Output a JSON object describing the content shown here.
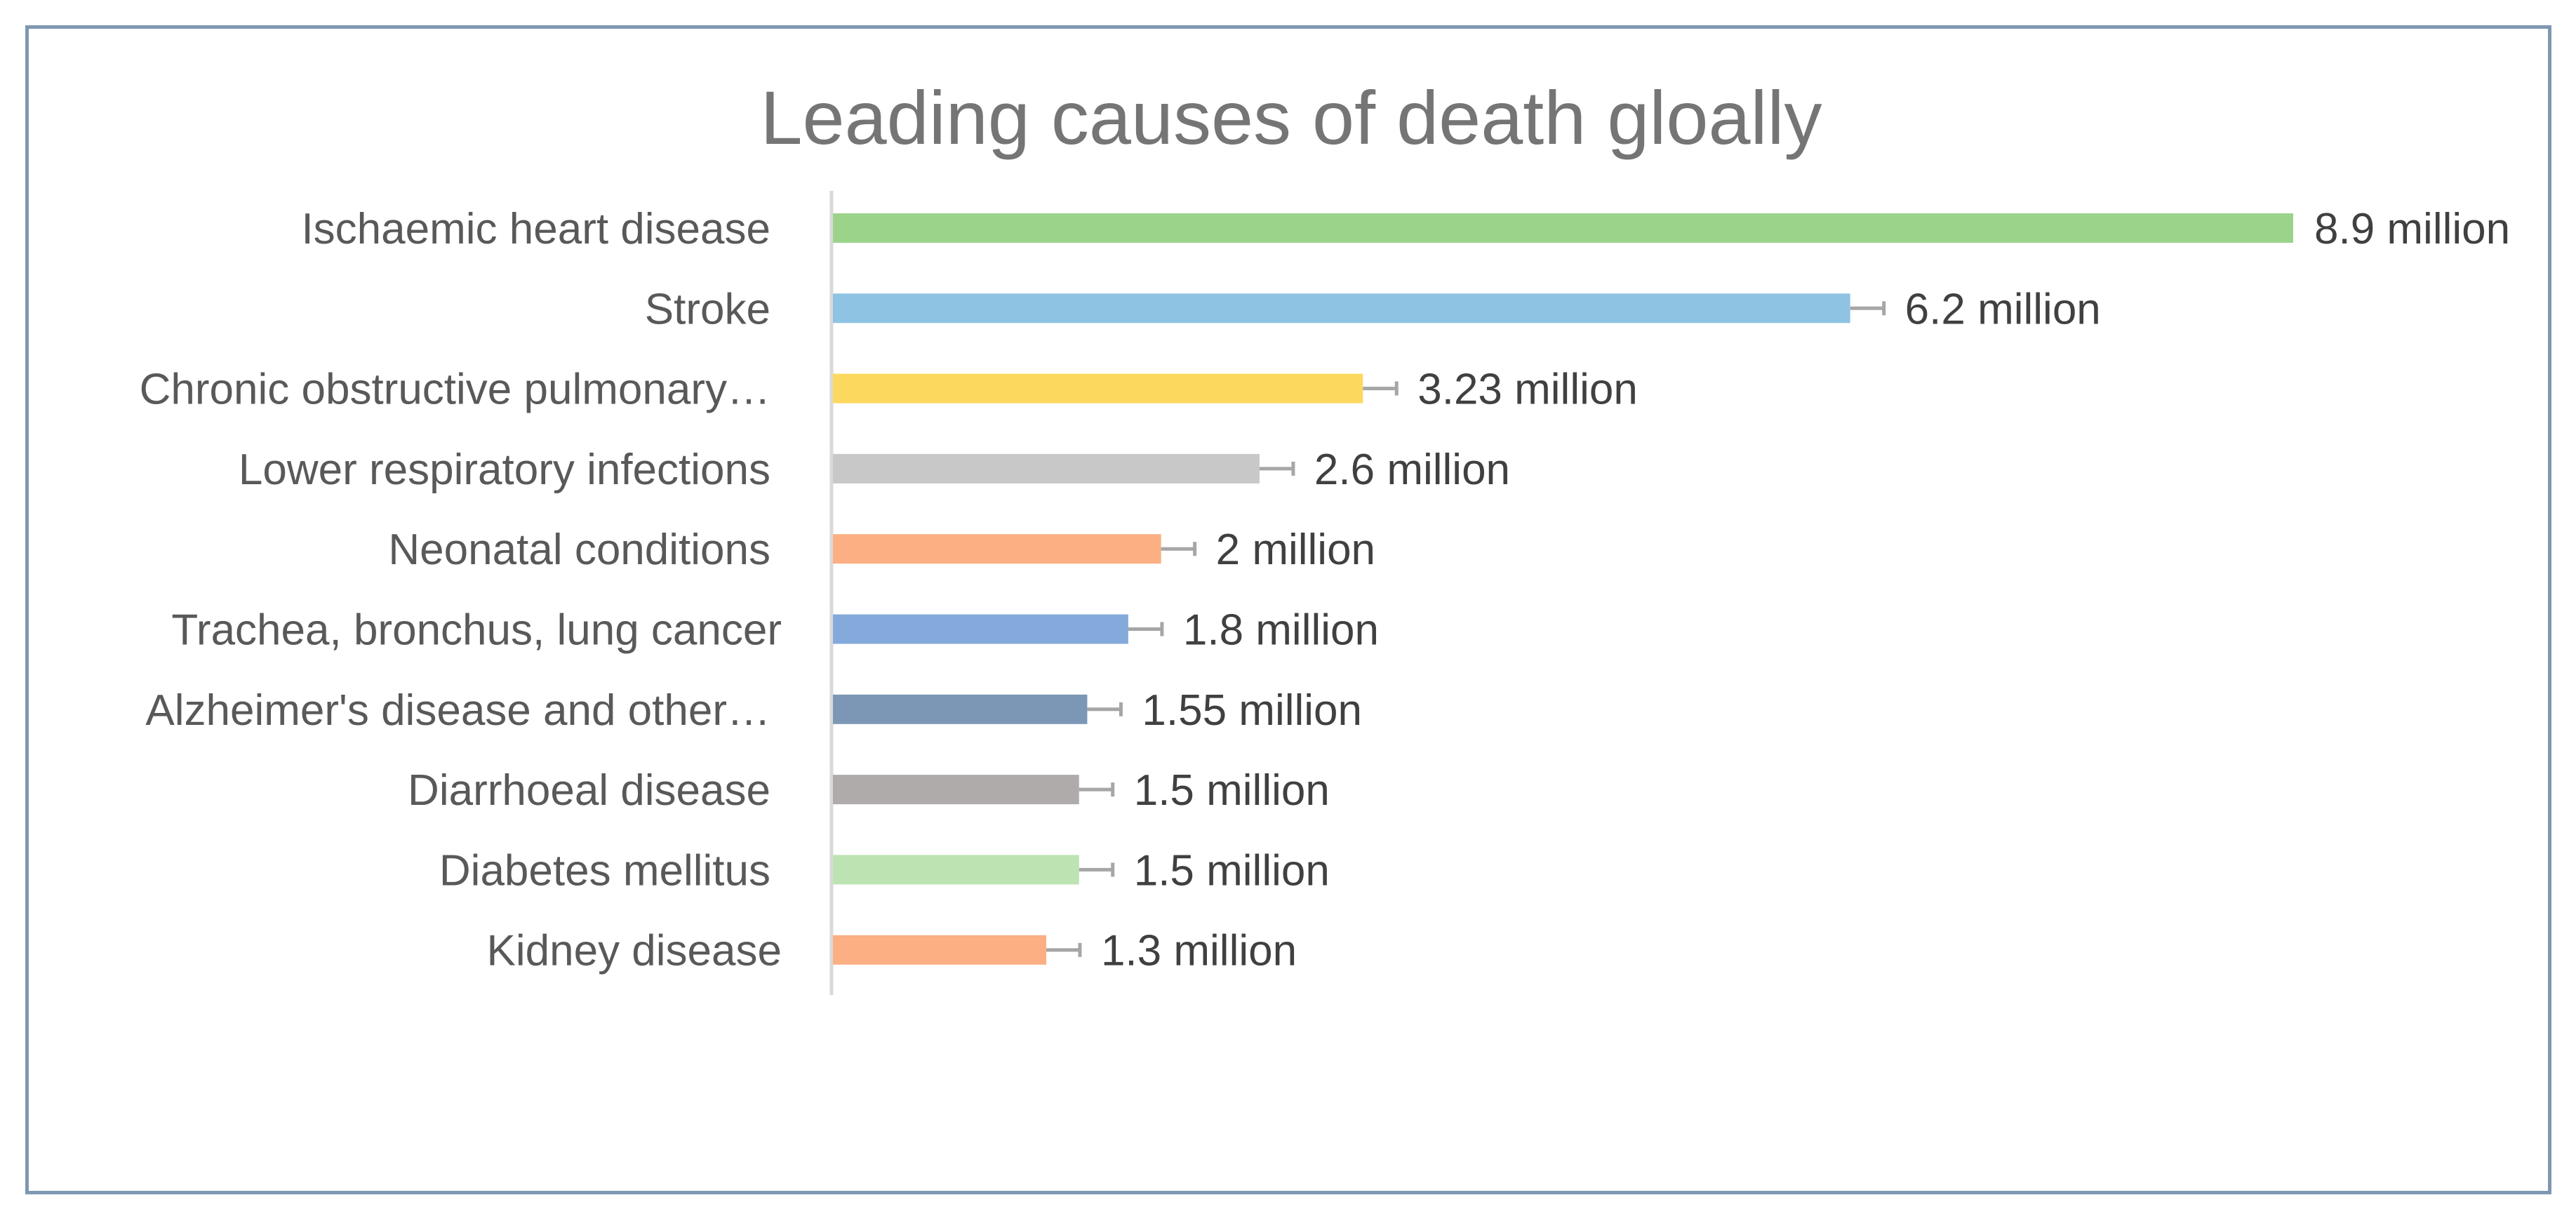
{
  "chart_data": {
    "type": "bar",
    "orientation": "horizontal",
    "title": "Leading causes of death gloally",
    "xlabel": "",
    "ylabel": "",
    "unit": "million",
    "categories": [
      "Ischaemic heart disease",
      "Stroke",
      "Chronic obstructive pulmonary…",
      "Lower respiratory infections",
      "Neonatal conditions",
      "Trachea, bronchus, lung cancer",
      "Alzheimer's disease and other…",
      "Diarrhoeal disease",
      "Diabetes mellitus",
      "Kidney disease"
    ],
    "values": [
      8.9,
      6.2,
      3.23,
      2.6,
      2,
      1.8,
      1.55,
      1.5,
      1.5,
      1.3
    ],
    "value_labels": [
      "8.9 million",
      "6.2 million",
      "3.23 million",
      "2.6 million",
      "2 million",
      "1.8 million",
      "1.55 million",
      "1.5 million",
      "1.5 million",
      "1.3 million"
    ],
    "colors": [
      "#9bd38b",
      "#8fc3e3",
      "#fdd85e",
      "#c8c8c8",
      "#fbaf82",
      "#84aadb",
      "#7b97b5",
      "#b0abab",
      "#bde3b3",
      "#fbaf82"
    ],
    "error_whisker_color": "#a6a6a6",
    "axis_color": "#d9d9d9",
    "xlim": [
      0,
      8.9
    ],
    "grid": false,
    "legend": "none"
  }
}
